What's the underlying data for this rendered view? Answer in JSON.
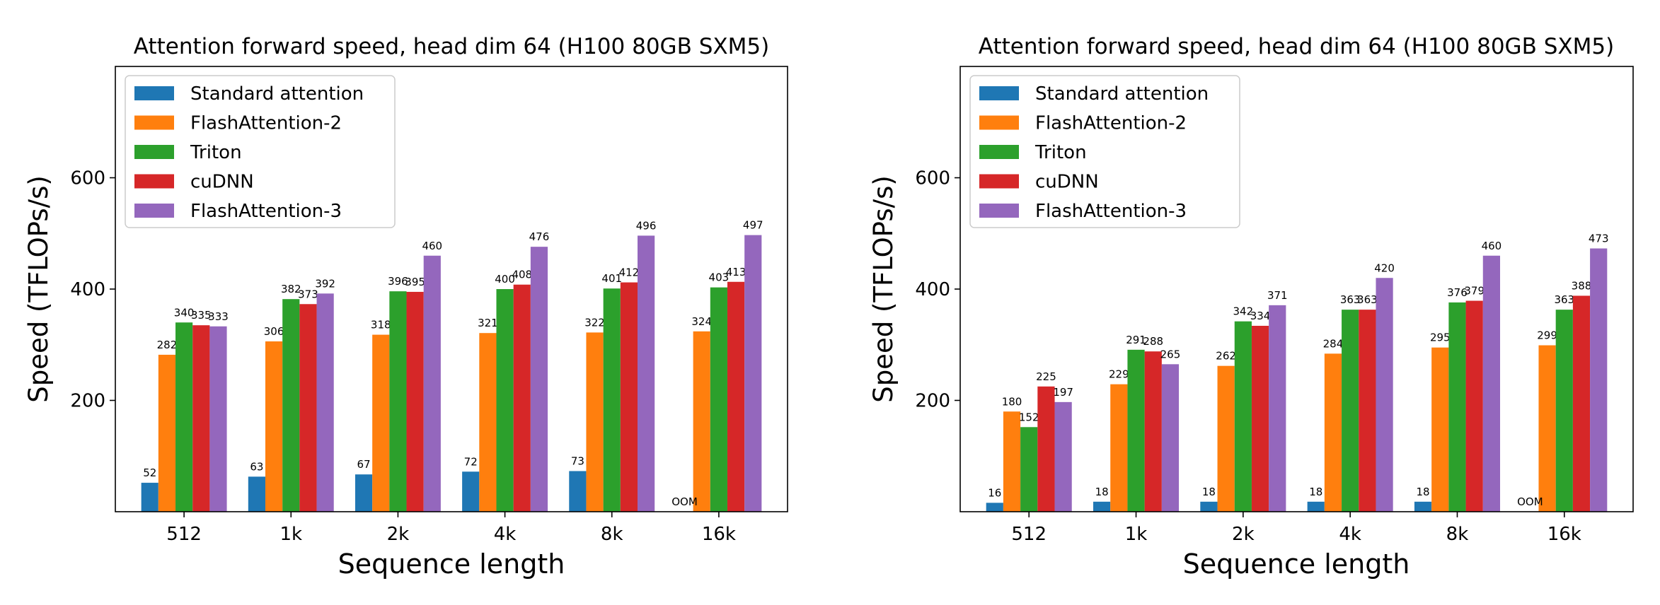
{
  "chart_data": [
    {
      "type": "bar",
      "title": "Attention forward speed, head dim 64 (H100 80GB SXM5)",
      "xlabel": "Sequence length",
      "ylabel": "Speed (TFLOPs/s)",
      "ylim": [
        0,
        800
      ],
      "yticks": [
        200,
        400,
        600
      ],
      "grid": false,
      "legend_position": "top-left",
      "categories": [
        "512",
        "1k",
        "2k",
        "4k",
        "8k",
        "16k"
      ],
      "series": [
        {
          "name": "Standard attention",
          "color": "#1f77b4",
          "values": [
            52,
            63,
            67,
            72,
            73,
            null
          ]
        },
        {
          "name": "FlashAttention-2",
          "color": "#ff7f0e",
          "values": [
            282,
            306,
            318,
            321,
            322,
            324
          ]
        },
        {
          "name": "Triton",
          "color": "#2ca02c",
          "values": [
            340,
            382,
            396,
            400,
            401,
            403
          ]
        },
        {
          "name": "cuDNN",
          "color": "#d62728",
          "values": [
            335,
            373,
            395,
            408,
            412,
            413
          ]
        },
        {
          "name": "FlashAttention-3",
          "color": "#9467bd",
          "values": [
            333,
            392,
            460,
            476,
            496,
            497
          ]
        }
      ],
      "annotations": [
        "OOM"
      ]
    },
    {
      "type": "bar",
      "title": "Attention forward speed, head dim 64 (H100 80GB SXM5)",
      "xlabel": "Sequence length",
      "ylabel": "Speed (TFLOPs/s)",
      "ylim": [
        0,
        800
      ],
      "yticks": [
        200,
        400,
        600
      ],
      "grid": false,
      "legend_position": "top-left",
      "categories": [
        "512",
        "1k",
        "2k",
        "4k",
        "8k",
        "16k"
      ],
      "series": [
        {
          "name": "Standard attention",
          "color": "#1f77b4",
          "values": [
            16,
            18,
            18,
            18,
            18,
            null
          ]
        },
        {
          "name": "FlashAttention-2",
          "color": "#ff7f0e",
          "values": [
            180,
            229,
            262,
            284,
            295,
            299
          ]
        },
        {
          "name": "Triton",
          "color": "#2ca02c",
          "values": [
            152,
            291,
            342,
            363,
            376,
            363
          ]
        },
        {
          "name": "cuDNN",
          "color": "#d62728",
          "values": [
            225,
            288,
            334,
            363,
            379,
            388
          ]
        },
        {
          "name": "FlashAttention-3",
          "color": "#9467bd",
          "values": [
            197,
            265,
            371,
            420,
            460,
            473
          ]
        }
      ],
      "annotations": [
        "OOM"
      ]
    }
  ]
}
